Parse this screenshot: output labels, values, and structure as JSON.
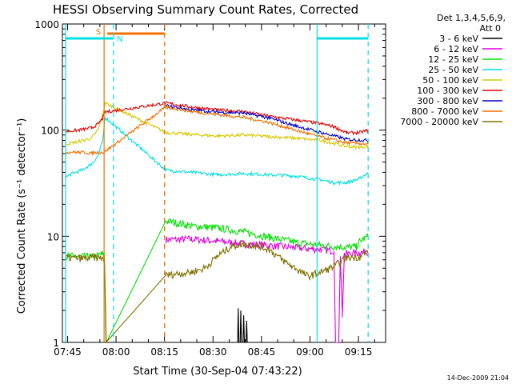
{
  "chart_data": {
    "type": "line",
    "title": "HESSI Observing Summary Count Rates, Corrected",
    "xlabel": "Start Time (30-Sep-04 07:43:22)",
    "ylabel": "Corrected Count Rate (s⁻¹ detector⁻¹)",
    "x_unit": "minutes after 07:43:22",
    "xlim": [
      0,
      100
    ],
    "ylim": [
      1,
      1000
    ],
    "y_scale": "log",
    "x_ticks": [
      {
        "label": "07:45",
        "value": 1.6
      },
      {
        "label": "08:00",
        "value": 16.6
      },
      {
        "label": "08:15",
        "value": 31.6
      },
      {
        "label": "08:30",
        "value": 46.6
      },
      {
        "label": "08:45",
        "value": 61.6
      },
      {
        "label": "09:00",
        "value": 76.6
      },
      {
        "label": "09:15",
        "value": 91.6
      }
    ],
    "y_ticks": [
      {
        "label": "1",
        "value": 1
      },
      {
        "label": "10",
        "value": 10
      },
      {
        "label": "100",
        "value": 100
      },
      {
        "label": "1000",
        "value": 1000
      }
    ],
    "legend_header": [
      "Det 1,3,4,5,6,9,",
      "Att 0"
    ],
    "legend_position": "right",
    "stamp": "14-Dec-2009 21:04",
    "series": [
      {
        "name": "3 - 6 keV",
        "color": "#000000",
        "points": [
          [
            54.2,
            1
          ],
          [
            54.4,
            2.1
          ],
          [
            54.6,
            1
          ],
          [
            55.0,
            1
          ],
          [
            55.2,
            2.0
          ],
          [
            55.4,
            1
          ],
          [
            55.9,
            1
          ],
          [
            56.1,
            1.8
          ],
          [
            56.3,
            1
          ],
          [
            56.8,
            1
          ],
          [
            57.0,
            1.6
          ],
          [
            57.2,
            1
          ]
        ]
      },
      {
        "name": "6 - 12 keV",
        "color": "#e000e0",
        "points": [
          [
            32,
            9.3
          ],
          [
            40,
            9.4
          ],
          [
            48,
            9.0
          ],
          [
            56,
            8.5
          ],
          [
            64,
            8.2
          ],
          [
            72,
            7.8
          ],
          [
            80,
            7.5
          ],
          [
            84,
            7.3
          ],
          [
            84.5,
            1
          ],
          [
            85.5,
            1
          ],
          [
            86,
            6.5
          ],
          [
            86.6,
            1.8
          ],
          [
            87.2,
            6.8
          ],
          [
            92,
            7.0
          ],
          [
            94.6,
            7.2
          ]
        ]
      },
      {
        "name": "12 - 25 keV",
        "color": "#00e000",
        "points": [
          [
            1,
            6.5
          ],
          [
            10,
            6.4
          ],
          [
            12,
            6.8
          ],
          [
            13,
            6.6
          ],
          [
            13.6,
            1
          ],
          [
            32,
            14
          ],
          [
            40,
            12.5
          ],
          [
            48,
            12
          ],
          [
            56,
            11
          ],
          [
            64,
            9.8
          ],
          [
            72,
            8.8
          ],
          [
            80,
            8.2
          ],
          [
            88,
            7.9
          ],
          [
            91,
            8.0
          ],
          [
            92,
            9
          ],
          [
            94.6,
            10
          ]
        ]
      },
      {
        "name": "25 - 50 keV",
        "color": "#00e0e0",
        "points": [
          [
            1,
            36
          ],
          [
            3,
            39
          ],
          [
            6,
            42
          ],
          [
            9,
            48
          ],
          [
            11,
            57
          ],
          [
            12.5,
            80
          ],
          [
            13.2,
            132
          ],
          [
            32,
            42
          ],
          [
            40,
            40
          ],
          [
            48,
            38
          ],
          [
            56,
            39
          ],
          [
            64,
            38
          ],
          [
            72,
            37
          ],
          [
            80,
            34
          ],
          [
            84,
            32
          ],
          [
            88,
            32
          ],
          [
            92,
            35
          ],
          [
            94.6,
            40
          ]
        ]
      },
      {
        "name": "50 - 100 keV",
        "color": "#d8c800",
        "points": [
          [
            1,
            74
          ],
          [
            5,
            78
          ],
          [
            9,
            84
          ],
          [
            11,
            100
          ],
          [
            12.5,
            140
          ],
          [
            13.2,
            180
          ],
          [
            32,
            95
          ],
          [
            40,
            91
          ],
          [
            48,
            88
          ],
          [
            56,
            90
          ],
          [
            64,
            87
          ],
          [
            72,
            84
          ],
          [
            80,
            80
          ],
          [
            84,
            75
          ],
          [
            88,
            70
          ],
          [
            92,
            69
          ],
          [
            94.6,
            71
          ]
        ]
      },
      {
        "name": "100 - 300 keV",
        "color": "#e00000",
        "points": [
          [
            1,
            97
          ],
          [
            5,
            100
          ],
          [
            9,
            105
          ],
          [
            11,
            114
          ],
          [
            12.5,
            130
          ],
          [
            13.2,
            148
          ],
          [
            32,
            180
          ],
          [
            40,
            165
          ],
          [
            48,
            155
          ],
          [
            56,
            150
          ],
          [
            64,
            135
          ],
          [
            72,
            125
          ],
          [
            80,
            115
          ],
          [
            84,
            108
          ],
          [
            88,
            94
          ],
          [
            92,
            95
          ],
          [
            94.6,
            100
          ]
        ]
      },
      {
        "name": "300 - 800 keV",
        "color": "#0000d0",
        "points": [
          [
            32,
            170
          ],
          [
            40,
            155
          ],
          [
            48,
            148
          ],
          [
            56,
            145
          ],
          [
            64,
            130
          ],
          [
            72,
            110
          ],
          [
            80,
            95
          ],
          [
            88,
            82
          ],
          [
            94.6,
            80
          ]
        ]
      },
      {
        "name": "800 - 7000 keV",
        "color": "#f07000",
        "points": [
          [
            1,
            62
          ],
          [
            5,
            62
          ],
          [
            9,
            61
          ],
          [
            12.9,
            62
          ],
          [
            32,
            165
          ],
          [
            40,
            150
          ],
          [
            48,
            140
          ],
          [
            56,
            132
          ],
          [
            64,
            118
          ],
          [
            72,
            100
          ],
          [
            80,
            86
          ],
          [
            88,
            76
          ],
          [
            94.6,
            74
          ]
        ]
      },
      {
        "name": "7000 - 20000 keV",
        "color": "#807000",
        "points": [
          [
            1,
            6.3
          ],
          [
            6,
            6.2
          ],
          [
            10,
            6.3
          ],
          [
            13,
            6.2
          ],
          [
            13.5,
            1
          ],
          [
            32,
            4.3
          ],
          [
            40,
            4.6
          ],
          [
            44,
            5.0
          ],
          [
            48,
            6.5
          ],
          [
            52,
            8.0
          ],
          [
            56,
            8.5
          ],
          [
            60,
            8.2
          ],
          [
            64,
            7.5
          ],
          [
            68,
            6.0
          ],
          [
            72,
            5.0
          ],
          [
            76,
            4.2
          ],
          [
            80,
            4.6
          ],
          [
            84,
            5.2
          ],
          [
            88,
            6.3
          ],
          [
            92,
            6.4
          ],
          [
            94.6,
            7.3
          ]
        ]
      }
    ],
    "annotations": [
      {
        "label": "S",
        "color": "#f07000"
      },
      {
        "label": "N",
        "color": "#00e0e0"
      }
    ],
    "events": {
      "s_line": 12.9,
      "s_bar": [
        13.9,
        31.6
      ],
      "s_dash": 31.6,
      "n_line": 1,
      "n_bar_left": [
        1,
        15.8
      ],
      "n_dash_left": 15.8,
      "n_line_right": 78.8,
      "n_bar_right": [
        78.8,
        94.6
      ],
      "n_dash_right": 94.6
    }
  }
}
